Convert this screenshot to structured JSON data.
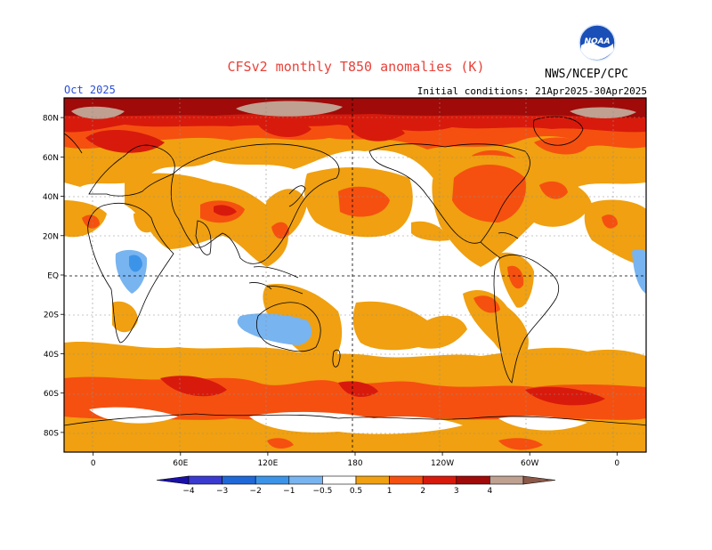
{
  "header": {
    "title": "CFSv2 monthly T850 anomalies (K)",
    "agency": "NWS/NCEP/CPC",
    "period": "Oct 2025",
    "initial_conditions": "Initial conditions: 21Apr2025-30Apr2025",
    "logo_text": "NOAA"
  },
  "map": {
    "projection": "cylindrical",
    "longitude_range": [
      -20,
      380
    ],
    "latitude_range": [
      -90,
      90
    ],
    "lat_labels": [
      {
        "lat": 80,
        "text": "80N"
      },
      {
        "lat": 60,
        "text": "60N"
      },
      {
        "lat": 40,
        "text": "40N"
      },
      {
        "lat": 20,
        "text": "20N"
      },
      {
        "lat": 0,
        "text": "EQ"
      },
      {
        "lat": -20,
        "text": "20S"
      },
      {
        "lat": -40,
        "text": "40S"
      },
      {
        "lat": -60,
        "text": "60S"
      },
      {
        "lat": -80,
        "text": "80S"
      }
    ],
    "lon_labels": [
      {
        "lon": 0,
        "text": "0"
      },
      {
        "lon": 60,
        "text": "60E"
      },
      {
        "lon": 120,
        "text": "120E"
      },
      {
        "lon": 180,
        "text": "180"
      },
      {
        "lon": 240,
        "text": "120W"
      },
      {
        "lon": 300,
        "text": "60W"
      },
      {
        "lon": 360,
        "text": "0"
      }
    ]
  },
  "legend": {
    "levels": [
      -4,
      -3,
      -2,
      -1,
      -0.5,
      0.5,
      1,
      2,
      3,
      4
    ],
    "labels": [
      "−4",
      "−3",
      "−2",
      "−1",
      "−0.5",
      "0.5",
      "1",
      "2",
      "3",
      "4"
    ],
    "colors": [
      "#1a10a8",
      "#3a3ad0",
      "#1e68d8",
      "#3c94e8",
      "#78b4f0",
      "#ffffff",
      "#f0a010",
      "#f55010",
      "#d81a0c",
      "#a00a08",
      "#c0a090",
      "#8c5848"
    ]
  }
}
